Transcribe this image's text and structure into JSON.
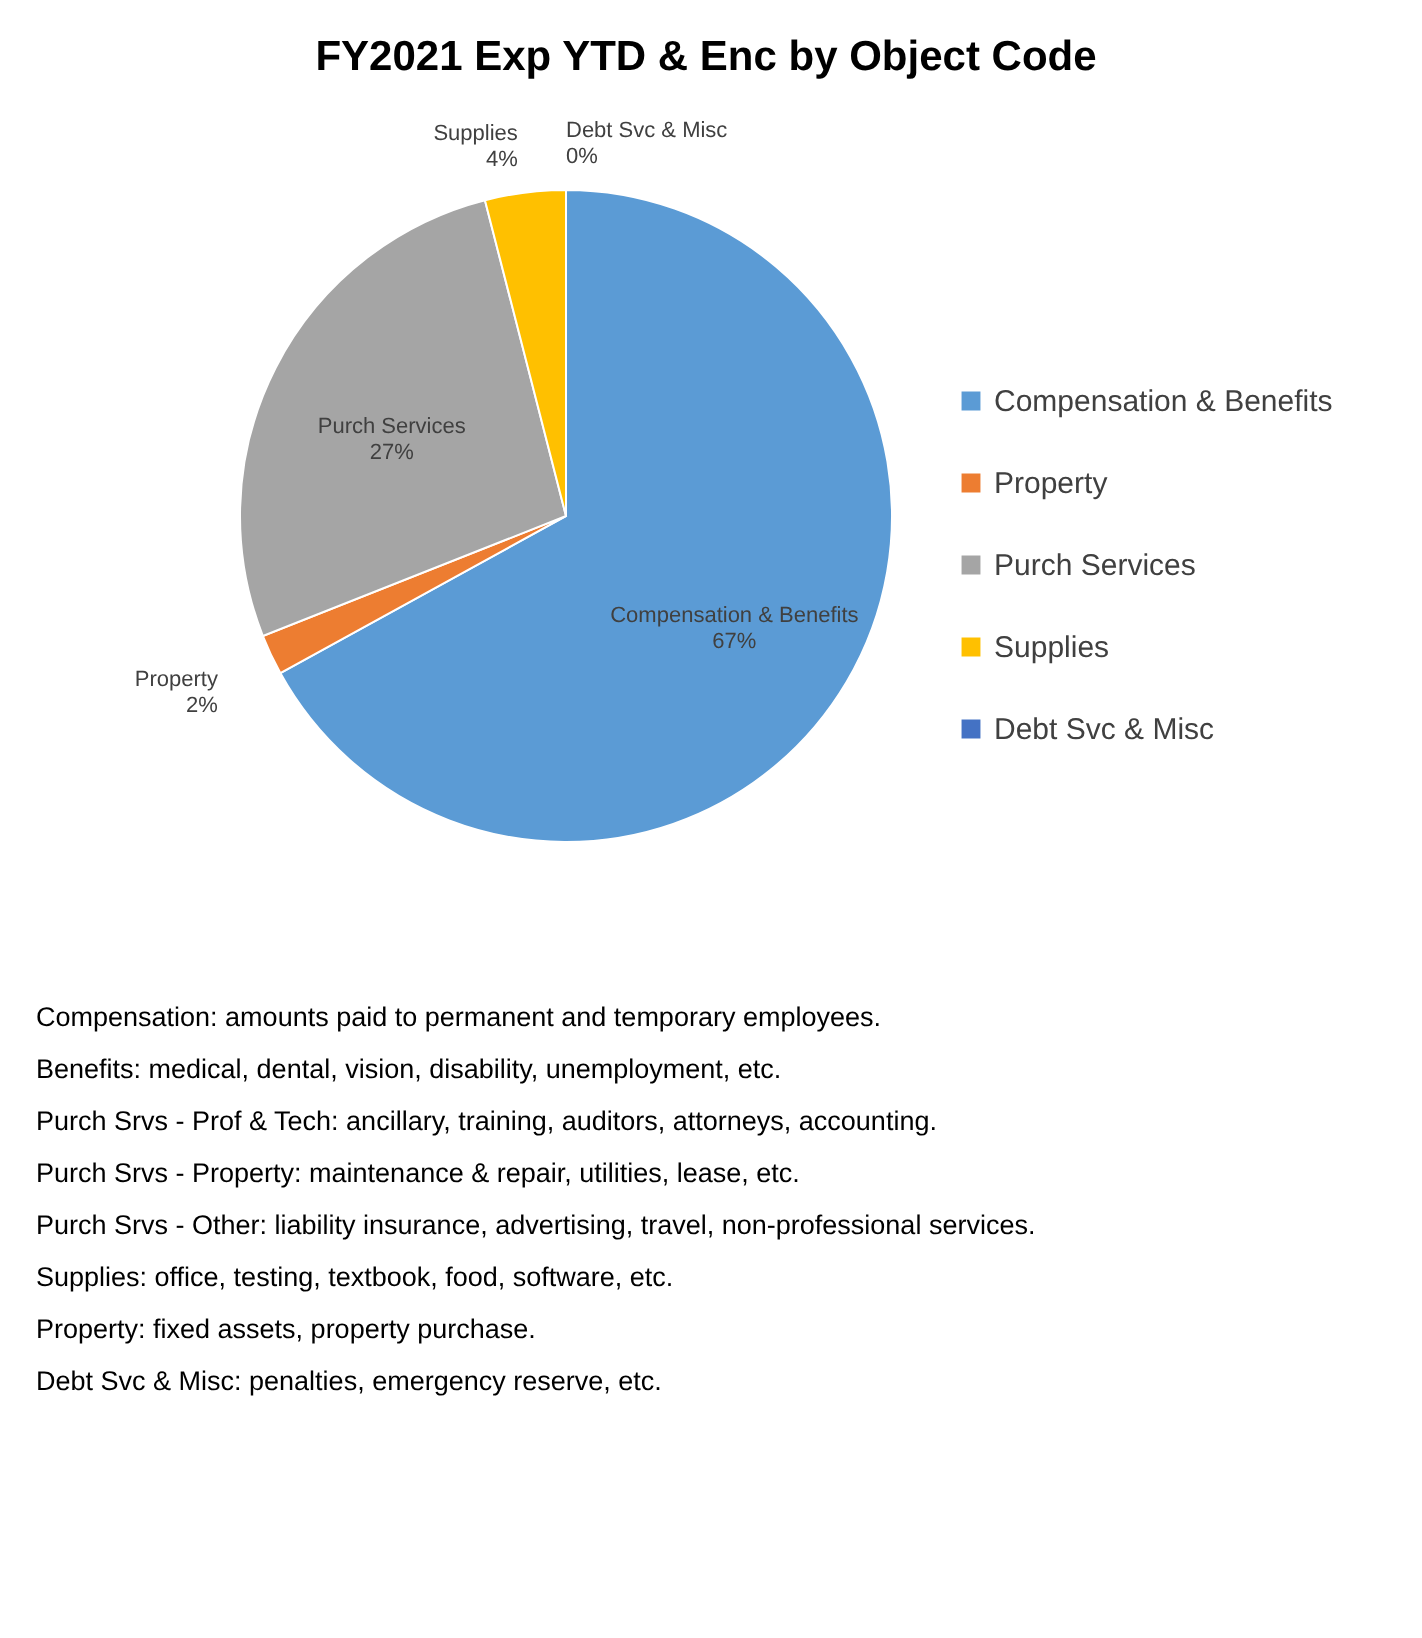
{
  "chart_data": {
    "type": "pie",
    "title": "FY2021 Exp YTD & Enc by Object Code",
    "categories": [
      "Compensation & Benefits",
      "Property",
      "Purch Services",
      "Supplies",
      "Debt Svc & Misc"
    ],
    "values": [
      67,
      2,
      27,
      4,
      0
    ],
    "value_labels": [
      "67%",
      "2%",
      "27%",
      "4%",
      "0%"
    ],
    "colors": [
      "#5b9bd5",
      "#ed7d31",
      "#a5a5a5",
      "#ffc000",
      "#4472c4"
    ],
    "legend": "right",
    "annotations": [
      "Compensation: amounts paid to permanent and temporary employees.",
      "Benefits: medical, dental, vision, disability, unemployment, etc.",
      "Purch Srvs - Prof & Tech: ancillary, training, auditors, attorneys, accounting.",
      "Purch Srvs - Property: maintenance & repair, utilities, lease, etc.",
      "Purch Srvs - Other: liability insurance, advertising, travel, non-professional services.",
      "Supplies: office, testing, textbook, food, software, etc.",
      "Property: fixed assets, property purchase.",
      "Debt Svc & Misc: penalties, emergency reserve, etc."
    ]
  }
}
